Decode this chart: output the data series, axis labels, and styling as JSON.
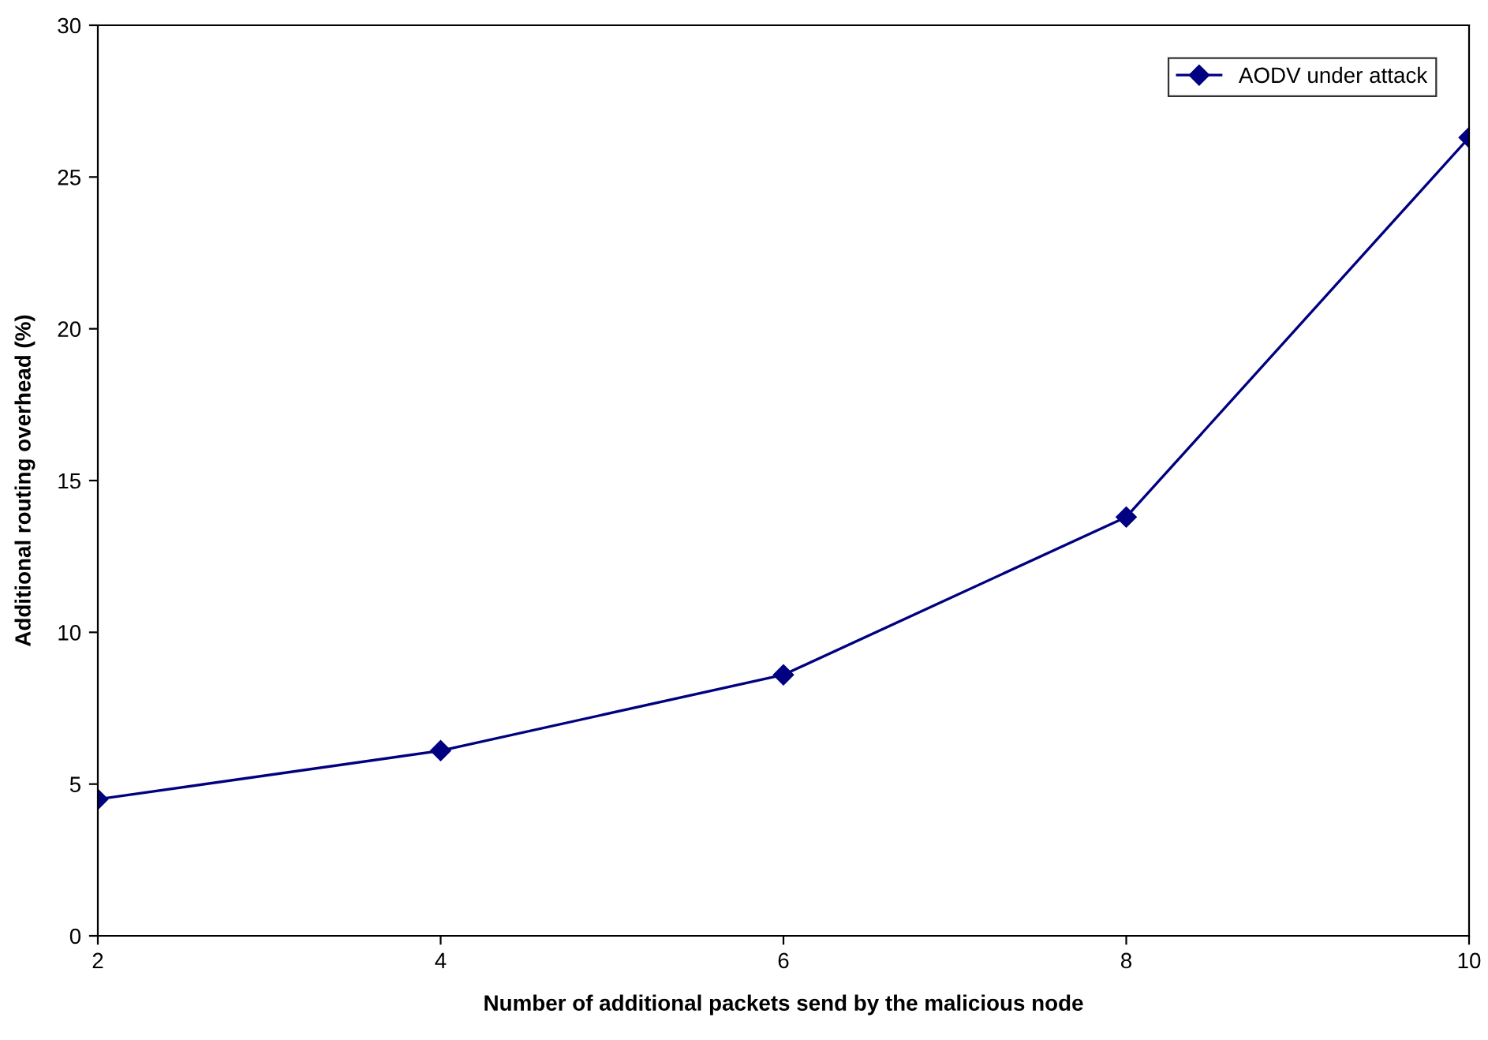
{
  "chart_data": {
    "type": "line",
    "xlabel": "Number of additional packets send by the malicious node",
    "ylabel": "Additional routing overhead (%)",
    "x": [
      2,
      4,
      6,
      8,
      10
    ],
    "series": [
      {
        "name": "AODV under attack",
        "color": "#000080",
        "values": [
          4.5,
          6.1,
          8.6,
          13.8,
          26.3
        ]
      }
    ],
    "xlim": [
      2,
      10
    ],
    "xticks": [
      2,
      4,
      6,
      8,
      10
    ],
    "ylim": [
      0,
      30
    ],
    "yticks": [
      0,
      5,
      10,
      15,
      20,
      25,
      30
    ],
    "grid": false,
    "legend": "top right",
    "marker": "diamond",
    "line_style": "solid"
  }
}
